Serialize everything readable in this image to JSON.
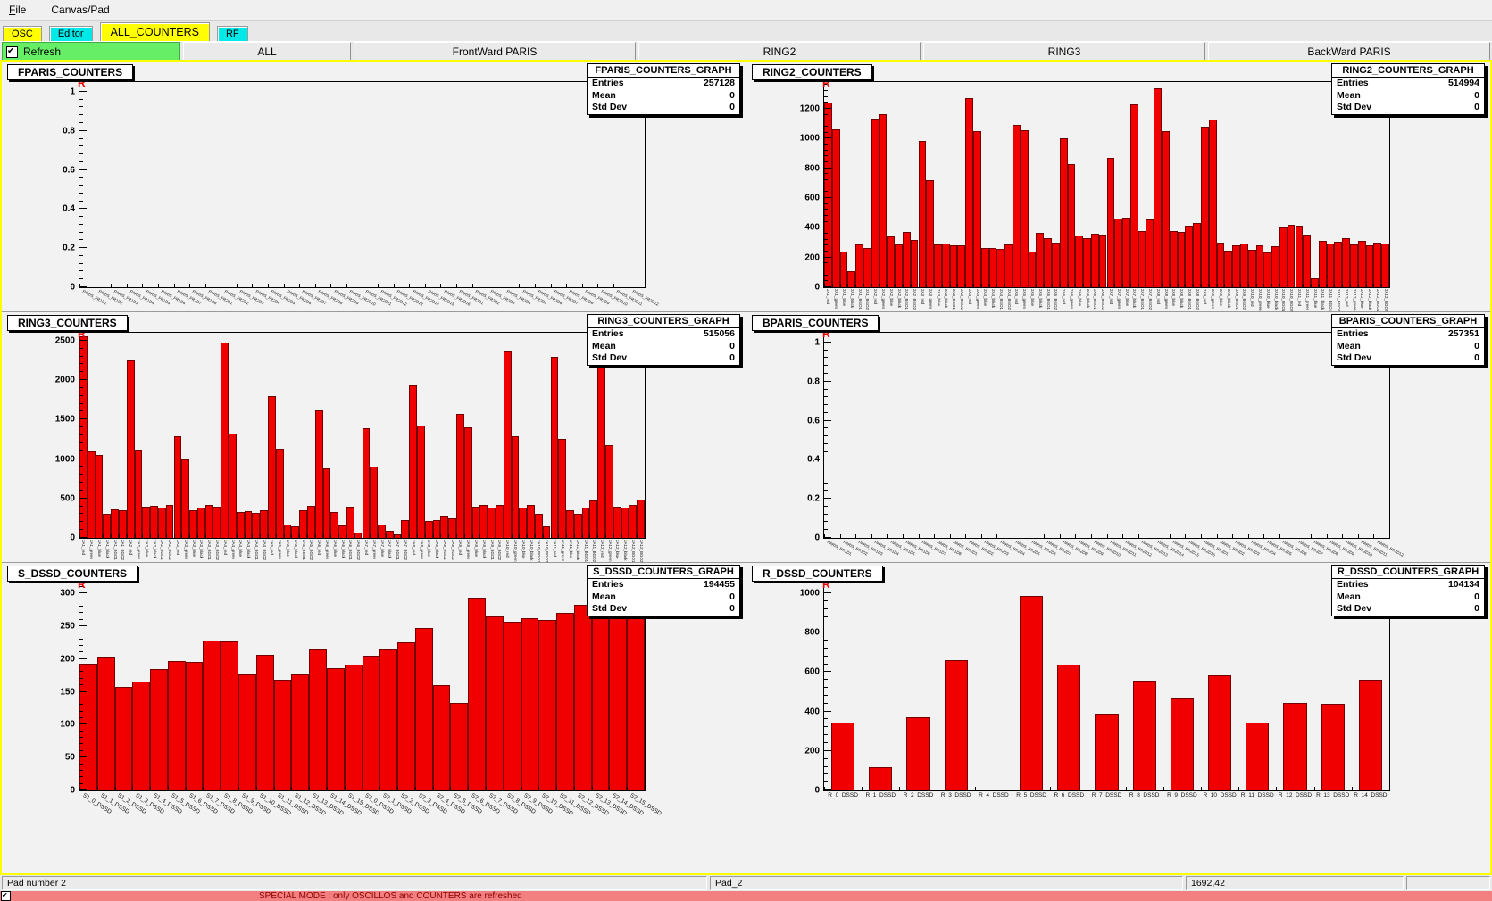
{
  "menu": {
    "items": [
      "File",
      "Canvas/Pad"
    ]
  },
  "tabs": [
    {
      "label": "OSC",
      "color": "#ffff00",
      "active": false
    },
    {
      "label": "Editor",
      "color": "#00e8e8",
      "active": false
    },
    {
      "label": "ALL_COUNTERS",
      "color": "#ffff00",
      "active": true
    },
    {
      "label": "RF",
      "color": "#00e8e8",
      "active": false
    }
  ],
  "toolbar": {
    "refresh_label": "Refresh",
    "refresh_checked": true,
    "buttons": [
      "ALL",
      "FrontWard PARIS",
      "RING2",
      "RING3",
      "BackWard PARIS"
    ]
  },
  "colors": {
    "bar_red": "#f10000",
    "tab_yellow": "#ffff00",
    "tab_cyan": "#00e8e8",
    "refresh_green": "#66ee66",
    "canvas_border_yellow": "#ffff00",
    "special_bg": "#f38080",
    "special_text": "#8b0000"
  },
  "statusbar": {
    "fields": [
      "Pad number 2",
      "Pad_2",
      "1692,42",
      ""
    ]
  },
  "special_mode": {
    "checked": true,
    "text": "SPECIAL MODE : only OSCILLOS and COUNTERS are refreshed"
  },
  "pads": [
    {
      "title": "FPARIS_COUNTERS",
      "stats": {
        "title": "FPARIS_COUNTERS_GRAPH",
        "rows": [
          {
            "label": "Entries",
            "value": "257128"
          },
          {
            "label": "Mean",
            "value": "0"
          },
          {
            "label": "Std Dev",
            "value": "0"
          }
        ]
      },
      "chart": {
        "type": "bar",
        "marker": "R",
        "ymax": 1.05,
        "yminor": 0.04,
        "bar_width": 1,
        "label_mode": "diag-tiny",
        "yticks": [
          0,
          0.2,
          0.4,
          0.6,
          0.8,
          1
        ],
        "ylabels": [
          "0",
          "0.2",
          "0.4",
          "0.6",
          "0.8",
          "1"
        ],
        "categories": [
          "PARIS_FR1D1",
          "PARIS_FR1D2",
          "PARIS_FR1D3",
          "PARIS_FR1D4",
          "PARIS_FR1D5",
          "PARIS_FR1D6",
          "PARIS_FR1D7",
          "PARIS_FR1D8",
          "PARIS_FR2D1",
          "PARIS_FR2D2",
          "PARIS_FR2D3",
          "PARIS_FR2D4",
          "PARIS_FR2D5",
          "PARIS_FR2D6",
          "PARIS_FR2D7",
          "PARIS_FR2D8",
          "PARIS_FR2D9",
          "PARIS_FR2D10",
          "PARIS_FR2D11",
          "PARIS_FR2D12",
          "PARIS_FR2D13",
          "PARIS_FR2D14",
          "PARIS_FR2D15",
          "PARIS_FR2D16",
          "PARIS_FR3D1",
          "PARIS_FR3D2",
          "PARIS_FR3D3",
          "PARIS_FR3D4",
          "PARIS_FR3D5",
          "PARIS_FR3D6",
          "PARIS_FR3D7",
          "PARIS_FR3D8",
          "PARIS_FR3D9",
          "PARIS_FR3D10",
          "PARIS_FR3D11",
          "PARIS_FR3D12"
        ],
        "values": [
          0,
          0,
          0,
          0,
          0,
          0,
          0,
          0,
          0,
          0,
          0,
          0,
          0,
          0,
          0,
          0,
          0,
          0,
          0,
          0,
          0,
          0,
          0,
          0,
          0,
          0,
          0,
          0,
          0,
          0,
          0,
          0,
          0,
          0,
          0,
          0
        ]
      }
    },
    {
      "title": "RING2_COUNTERS",
      "stats": {
        "title": "RING2_COUNTERS_GRAPH",
        "rows": [
          {
            "label": "Entries",
            "value": "514994"
          },
          {
            "label": "Mean",
            "value": "0"
          },
          {
            "label": "Std Dev",
            "value": "0"
          }
        ]
      },
      "chart": {
        "type": "bar",
        "marker": "R",
        "ymax": 1380,
        "yminor": 40,
        "bar_width": 1,
        "label_mode": "vert",
        "yticks": [
          0,
          200,
          400,
          600,
          800,
          1000,
          1200
        ],
        "ylabels": [
          "0",
          "200",
          "400",
          "600",
          "800",
          "1000",
          "1200"
        ],
        "categories": [
          "2A1_red",
          "2A1_green",
          "2A1_blue",
          "2A1_black",
          "2A1_BGO1",
          "2A1_BGO2",
          "2A2_red",
          "2A2_green",
          "2A2_blue",
          "2A2_black",
          "2A2_BGO1",
          "2A2_BGO2",
          "2A3_red",
          "2A3_green",
          "2A3_blue",
          "2A3_black",
          "2A3_BGO1",
          "2A3_BGO2",
          "2A4_red",
          "2A4_green",
          "2A4_blue",
          "2A4_black",
          "2A4_BGO1",
          "2A4_BGO2",
          "2A5_red",
          "2A5_green",
          "2A5_blue",
          "2A5_black",
          "2A5_BGO1",
          "2A5_BGO2",
          "2A6_red",
          "2A6_green",
          "2A6_blue",
          "2A6_black",
          "2A6_BGO1",
          "2A6_BGO2",
          "2A7_red",
          "2A7_green",
          "2A7_blue",
          "2A7_black",
          "2A7_BGO1",
          "2A7_BGO2",
          "2A8_red",
          "2A8_green",
          "2A8_blue",
          "2A8_black",
          "2A8_BGO1",
          "2A8_BGO2",
          "2A9_red",
          "2A9_green",
          "2A9_blue",
          "2A9_black",
          "2A9_BGO1",
          "2A9_BGO2",
          "2A10_red",
          "2A10_green",
          "2A10_blue",
          "2A10_black",
          "2A10_BGO1",
          "2A10_BGO2",
          "2A11_red",
          "2A11_green",
          "2A11_blue",
          "2A11_black",
          "2A11_BGO1",
          "2A11_BGO2",
          "2A12_red",
          "2A12_green",
          "2A12_blue",
          "2A12_black",
          "2A12_BGO1",
          "2A12_BGO2"
        ],
        "values": [
          1240,
          1060,
          240,
          110,
          290,
          265,
          1135,
          1165,
          345,
          290,
          370,
          320,
          985,
          720,
          290,
          295,
          280,
          285,
          1275,
          1050,
          265,
          265,
          260,
          290,
          1090,
          1055,
          240,
          365,
          330,
          300,
          1000,
          830,
          350,
          330,
          360,
          355,
          870,
          460,
          470,
          1230,
          380,
          455,
          1340,
          1050,
          380,
          375,
          415,
          430,
          1080,
          1130,
          300,
          245,
          285,
          295,
          250,
          285,
          235,
          275,
          400,
          420,
          415,
          355,
          60,
          310,
          295,
          305,
          330,
          290,
          310,
          285,
          300,
          295
        ]
      }
    },
    {
      "title": "RING3_COUNTERS",
      "stats": {
        "title": "RING3_COUNTERS_GRAPH",
        "rows": [
          {
            "label": "Entries",
            "value": "515056"
          },
          {
            "label": "Mean",
            "value": "0"
          },
          {
            "label": "Std Dev",
            "value": "0"
          }
        ]
      },
      "chart": {
        "type": "bar",
        "marker": "R",
        "ymax": 2600,
        "yminor": 100,
        "bar_width": 1,
        "label_mode": "vert",
        "yticks": [
          0,
          500,
          1000,
          1500,
          2000,
          2500
        ],
        "ylabels": [
          "0",
          "500",
          "1000",
          "1500",
          "2000",
          "2500"
        ],
        "categories": [
          "3A1_red",
          "3A1_green",
          "3A1_blue",
          "3A1_black",
          "3A1_BGO1",
          "3A1_BGO2",
          "3A2_red",
          "3A2_green",
          "3A2_blue",
          "3A2_black",
          "3A2_BGO1",
          "3A2_BGO2",
          "3A3_red",
          "3A3_green",
          "3A3_blue",
          "3A3_black",
          "3A3_BGO1",
          "3A3_BGO2",
          "3A4_red",
          "3A4_green",
          "3A4_blue",
          "3A4_black",
          "3A4_BGO1",
          "3A4_BGO2",
          "3A5_red",
          "3A5_green",
          "3A5_blue",
          "3A5_black",
          "3A5_BGO1",
          "3A5_BGO2",
          "3A6_red",
          "3A6_green",
          "3A6_blue",
          "3A6_black",
          "3A6_BGO1",
          "3A6_BGO2",
          "3A7_red",
          "3A7_green",
          "3A7_blue",
          "3A7_black",
          "3A7_BGO1",
          "3A7_BGO2",
          "3A8_red",
          "3A8_green",
          "3A8_blue",
          "3A8_black",
          "3A8_BGO1",
          "3A8_BGO2",
          "3A9_red",
          "3A9_green",
          "3A9_blue",
          "3A9_black",
          "3A9_BGO1",
          "3A9_BGO2",
          "3A10_red",
          "3A10_green",
          "3A10_blue",
          "3A10_black",
          "3A10_BGO1",
          "3A10_BGO2",
          "3A11_red",
          "3A11_green",
          "3A11_blue",
          "3A11_black",
          "3A11_BGO1",
          "3A11_BGO2",
          "3A12_red",
          "3A12_green",
          "3A12_blue",
          "3A12_black",
          "3A12_BGO1",
          "3A12_BGO2"
        ],
        "values": [
          2550,
          1100,
          1050,
          310,
          365,
          345,
          2250,
          1105,
          395,
          410,
          380,
          415,
          1290,
          1000,
          355,
          380,
          415,
          400,
          2480,
          1320,
          330,
          340,
          320,
          345,
          1795,
          1130,
          165,
          150,
          355,
          410,
          1620,
          880,
          330,
          160,
          395,
          70,
          1390,
          910,
          175,
          95,
          50,
          230,
          1930,
          1420,
          215,
          230,
          280,
          250,
          1570,
          1400,
          395,
          415,
          380,
          420,
          2360,
          1290,
          390,
          420,
          310,
          150,
          2300,
          1260,
          355,
          300,
          380,
          475,
          2180,
          1180,
          400,
          380,
          415,
          490
        ]
      }
    },
    {
      "title": "BPARIS_COUNTERS",
      "stats": {
        "title": "BPARIS_COUNTERS_GRAPH",
        "rows": [
          {
            "label": "Entries",
            "value": "257351"
          },
          {
            "label": "Mean",
            "value": "0"
          },
          {
            "label": "Std Dev",
            "value": "0"
          }
        ]
      },
      "chart": {
        "type": "bar",
        "marker": "R",
        "ymax": 1.05,
        "yminor": 0.04,
        "bar_width": 1,
        "label_mode": "diag-tiny",
        "yticks": [
          0,
          0.2,
          0.4,
          0.6,
          0.8,
          1
        ],
        "ylabels": [
          "0",
          "0.2",
          "0.4",
          "0.6",
          "0.8",
          "1"
        ],
        "categories": [
          "PARIS_BR1D1",
          "PARIS_BR1D2",
          "PARIS_BR1D3",
          "PARIS_BR1D4",
          "PARIS_BR1D5",
          "PARIS_BR1D6",
          "PARIS_BR1D7",
          "PARIS_BR1D8",
          "PARIS_BR2D1",
          "PARIS_BR2D2",
          "PARIS_BR2D3",
          "PARIS_BR2D4",
          "PARIS_BR2D5",
          "PARIS_BR2D6",
          "PARIS_BR2D7",
          "PARIS_BR2D8",
          "PARIS_BR2D9",
          "PARIS_BR2D10",
          "PARIS_BR2D11",
          "PARIS_BR2D12",
          "PARIS_BR2D13",
          "PARIS_BR2D14",
          "PARIS_BR2D15",
          "PARIS_BR2D16",
          "PARIS_BR3D1",
          "PARIS_BR3D2",
          "PARIS_BR3D3",
          "PARIS_BR3D4",
          "PARIS_BR3D5",
          "PARIS_BR3D6",
          "PARIS_BR3D7",
          "PARIS_BR3D8",
          "PARIS_BR3D9",
          "PARIS_BR3D10",
          "PARIS_BR3D11",
          "PARIS_BR3D12"
        ],
        "values": [
          0,
          0,
          0,
          0,
          0,
          0,
          0,
          0,
          0,
          0,
          0,
          0,
          0,
          0,
          0,
          0,
          0,
          0,
          0,
          0,
          0,
          0,
          0,
          0,
          0,
          0,
          0,
          0,
          0,
          0,
          0,
          0,
          0,
          0,
          0,
          0
        ]
      }
    },
    {
      "title": "S_DSSD_COUNTERS",
      "stats": {
        "title": "S_DSSD_COUNTERS_GRAPH",
        "rows": [
          {
            "label": "Entries",
            "value": "194455"
          },
          {
            "label": "Mean",
            "value": "0"
          },
          {
            "label": "Std Dev",
            "value": "0"
          }
        ]
      },
      "chart": {
        "type": "bar",
        "marker": "R",
        "ymax": 315,
        "yminor": 10,
        "bar_width": 1,
        "label_mode": "diag",
        "yticks": [
          0,
          50,
          100,
          150,
          200,
          250,
          300
        ],
        "ylabels": [
          "0",
          "50",
          "100",
          "150",
          "200",
          "250",
          "300"
        ],
        "categories": [
          "S1_0_DSSD",
          "S1_1_DSSD",
          "S1_2_DSSD",
          "S1_3_DSSD",
          "S1_4_DSSD",
          "S1_5_DSSD",
          "S1_6_DSSD",
          "S1_7_DSSD",
          "S1_8_DSSD",
          "S1_9_DSSD",
          "S1_10_DSSD",
          "S1_11_DSSD",
          "S1_12_DSSD",
          "S1_13_DSSD",
          "S1_14_DSSD",
          "S1_15_DSSD",
          "S2_0_DSSD",
          "S2_1_DSSD",
          "S2_2_DSSD",
          "S2_3_DSSD",
          "S2_4_DSSD",
          "S2_5_DSSD",
          "S2_6_DSSD",
          "S2_7_DSSD",
          "S2_8_DSSD",
          "S2_9_DSSD",
          "S2_10_DSSD",
          "S2_11_DSSD",
          "S2_12_DSSD",
          "S2_13_DSSD",
          "S2_14_DSSD",
          "S2_15_DSSD"
        ],
        "values": [
          193,
          203,
          158,
          165,
          185,
          197,
          196,
          228,
          227,
          176,
          207,
          168,
          177,
          214,
          186,
          191,
          205,
          214,
          225,
          247,
          160,
          133,
          293,
          265,
          257,
          262,
          259,
          270,
          283,
          278,
          272,
          280
        ]
      }
    },
    {
      "title": "R_DSSD_COUNTERS",
      "stats": {
        "title": "R_DSSD_COUNTERS_GRAPH",
        "rows": [
          {
            "label": "Entries",
            "value": "104134"
          },
          {
            "label": "Mean",
            "value": "0"
          },
          {
            "label": "Std Dev",
            "value": "0"
          }
        ]
      },
      "chart": {
        "type": "bar",
        "marker": "R",
        "ymax": 1050,
        "yminor": 40,
        "bar_width": 0.62,
        "label_mode": "horiz",
        "yticks": [
          0,
          200,
          400,
          600,
          800,
          1000
        ],
        "ylabels": [
          "0",
          "200",
          "400",
          "600",
          "800",
          "1000"
        ],
        "categories": [
          "R_0_DSSD",
          "R_1_DSSD",
          "R_2_DSSD",
          "R_3_DSSD",
          "R_4_DSSD",
          "R_5_DSSD",
          "R_6_DSSD",
          "R_7_DSSD",
          "R_8_DSSD",
          "R_9_DSSD",
          "R_10_DSSD",
          "R_11_DSSD",
          "R_12_DSSD",
          "R_13_DSSD",
          "R_14_DSSD"
        ],
        "values": [
          345,
          120,
          370,
          660,
          0,
          985,
          640,
          390,
          555,
          465,
          585,
          345,
          445,
          440,
          560
        ]
      }
    }
  ]
}
